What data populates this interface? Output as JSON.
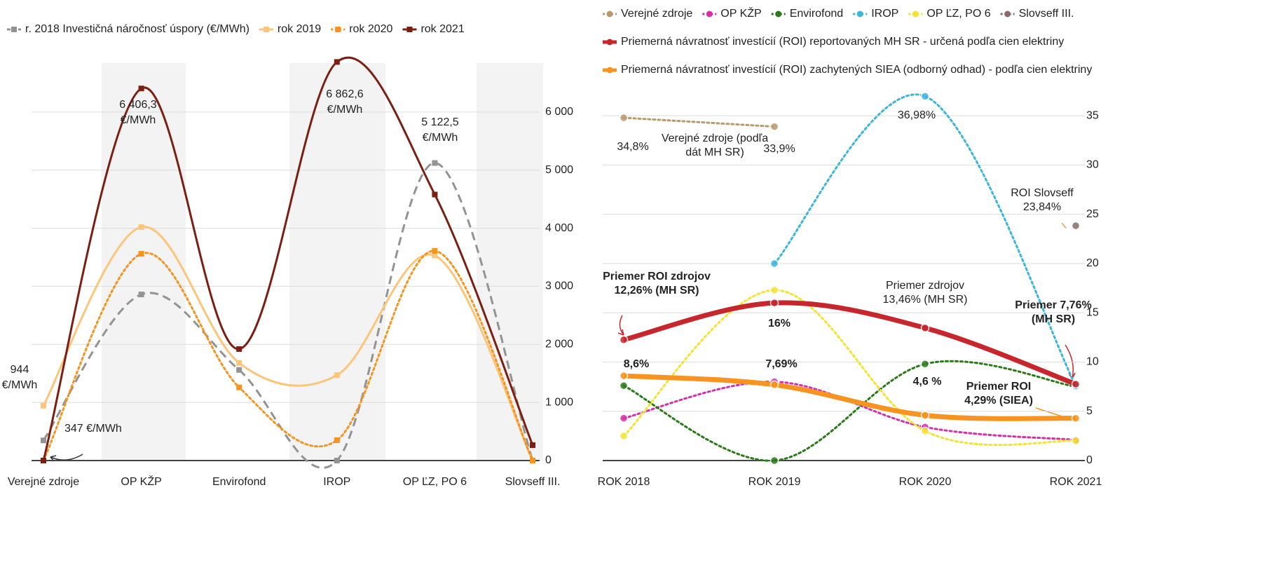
{
  "chart_data": [
    {
      "type": "line",
      "categories": [
        "Verejné zdroje",
        "OP KŽP",
        "Envirofond",
        "IROP",
        "OP ĽZ, PO 6",
        "Slovseff III."
      ],
      "series": [
        {
          "name": "r. 2018 Investičná náročnosť úspory (€/MWh)",
          "color": "#939393",
          "style": "dashed",
          "values": [
            347,
            2860,
            1560,
            0,
            5122.5,
            0
          ],
          "value_labels": [
            "347 €/MWh",
            null,
            null,
            null,
            "5 122,5 €/MWh",
            null
          ]
        },
        {
          "name": "rok 2019",
          "color": "#fbc57a",
          "style": "solid",
          "values": [
            944,
            4020,
            1680,
            1470,
            3530,
            0
          ],
          "value_labels": [
            "944 €/MWh",
            null,
            null,
            null,
            null,
            null
          ]
        },
        {
          "name": "rok 2020",
          "color": "#f7931e",
          "style": "dotted",
          "values": [
            0,
            3560,
            1260,
            350,
            3610,
            0
          ]
        },
        {
          "name": "rok 2021",
          "color": "#7a1f12",
          "style": "solid",
          "values": [
            0,
            6406.3,
            1920,
            6862.6,
            4580,
            265
          ],
          "value_labels": [
            null,
            "6 406,3 €/MWh",
            null,
            "6 862,6 €/MWh",
            null,
            null
          ]
        }
      ],
      "ylim": [
        0,
        7000
      ],
      "yticks": [
        0,
        {
          "value": 1000,
          "label": "1 000"
        },
        {
          "value": 2000,
          "label": "2 000"
        },
        {
          "value": 3000,
          "label": "3 000"
        },
        {
          "value": 4000,
          "label": "4 000"
        },
        {
          "value": 5000,
          "label": "5 000"
        },
        {
          "value": 6000,
          "label": "6 000"
        }
      ],
      "grid": true,
      "legend": "top"
    },
    {
      "type": "line",
      "categories": [
        "ROK 2018",
        "ROK 2019",
        "ROK 2020",
        "ROK 2021"
      ],
      "series": [
        {
          "name": "Verejné zdroje",
          "color": "#b89a6e",
          "style": "dotted",
          "values": [
            34.8,
            33.9,
            null,
            null
          ],
          "value_labels": [
            "34,8%",
            "33,9%",
            null,
            null
          ]
        },
        {
          "name": "OP KŽP",
          "color": "#d62fa8",
          "style": "dotted",
          "values": [
            4.3,
            8.0,
            3.4,
            2.1
          ]
        },
        {
          "name": "Envirofond",
          "color": "#2a7a1a",
          "style": "dotted",
          "values": [
            7.6,
            0,
            9.8,
            7.5
          ]
        },
        {
          "name": "IROP",
          "color": "#3bb6dc",
          "style": "dotted",
          "values": [
            null,
            20,
            36.98,
            7.6
          ],
          "value_labels": [
            null,
            null,
            "36,98%",
            null
          ]
        },
        {
          "name": "OP ĽZ, PO 6",
          "color": "#f2e431",
          "style": "dotted",
          "values": [
            2.5,
            17.3,
            3.0,
            2.0
          ]
        },
        {
          "name": "Slovseff III.",
          "color": "#8a6b6b",
          "style": "dotted",
          "values": [
            null,
            null,
            null,
            23.84
          ]
        },
        {
          "name": "Priemerná návratnosť  investícií (ROI) reportovaných  MH SR  - určená podľa cien elektriny",
          "color": "#c8262d",
          "style": "thick",
          "values": [
            12.26,
            16,
            13.46,
            7.76
          ],
          "value_labels": [
            null,
            "16%",
            null,
            null
          ]
        },
        {
          "name": "Priemerná návratnosť investícií (ROI) zachytených SIEA (odborný odhad) - podľa cien elektriny",
          "color": "#f7931e",
          "style": "thick",
          "values": [
            8.6,
            7.69,
            4.6,
            4.29
          ],
          "value_labels": [
            "8,6%",
            "7,69%",
            "4,6 %",
            null
          ]
        }
      ],
      "annotations": [
        [
          "Verejné zdroje (podľa",
          "dát MH SR)"
        ],
        [
          "ROI Slovseff",
          "23,84%"
        ],
        [
          "Priemer ROI zdrojov",
          "12,26% (MH SR)"
        ],
        [
          "Priemer zdrojov",
          "13,46% (MH SR)"
        ],
        [
          "Priemer 7,76%",
          "(MH SR)"
        ],
        [
          "Priemer ROI",
          "4,29% (SIEA)"
        ]
      ],
      "ylim": [
        0,
        38
      ],
      "yticks": [
        0,
        5,
        10,
        15,
        20,
        25,
        30,
        35
      ],
      "grid": true,
      "legend": "top"
    }
  ]
}
